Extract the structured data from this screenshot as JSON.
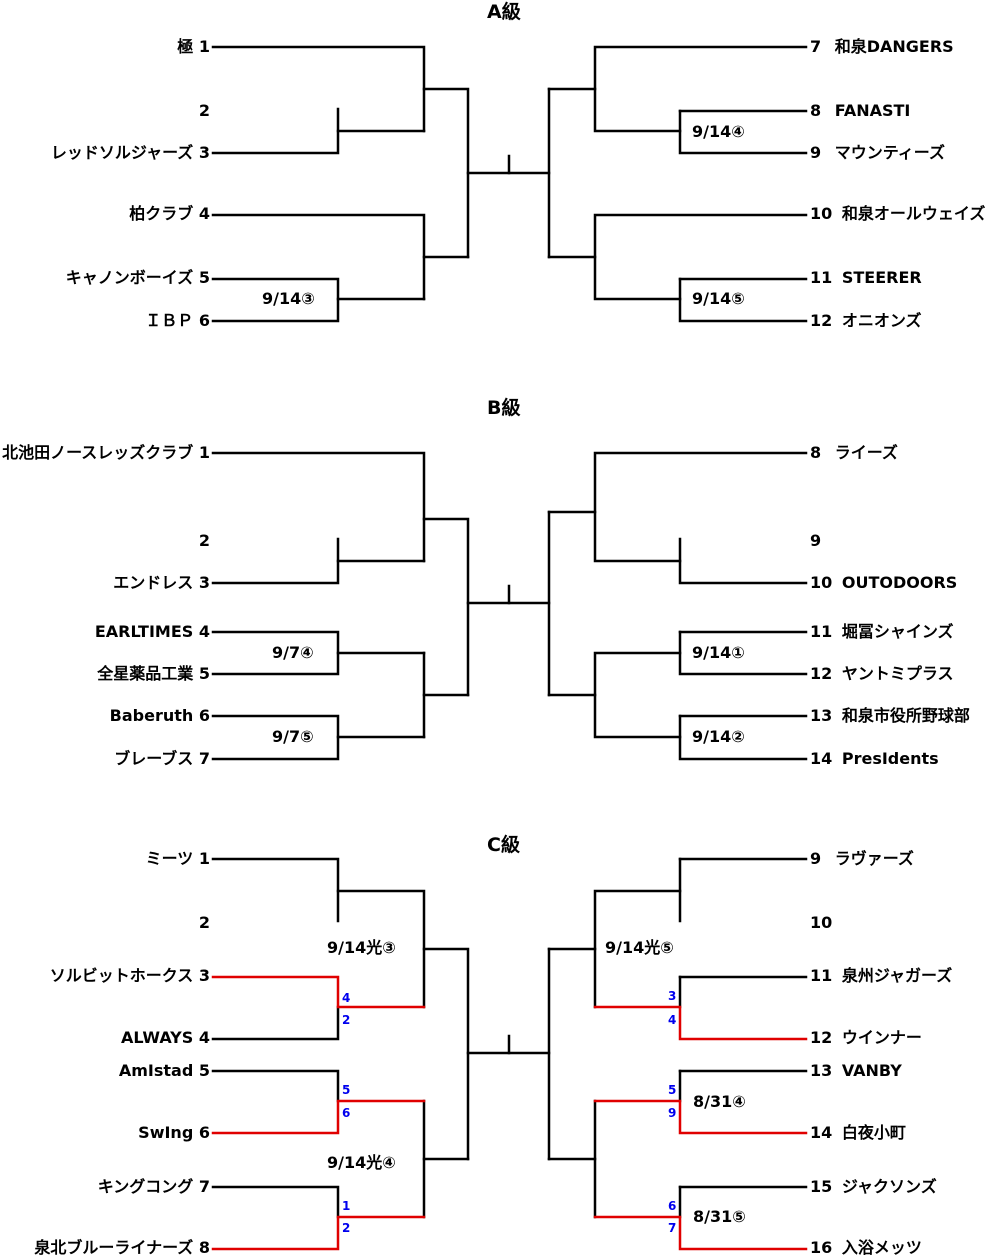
{
  "divisions": {
    "a": {
      "title": "A級",
      "left": [
        {
          "seed": "1",
          "name": "極"
        },
        {
          "seed": "2",
          "name": ""
        },
        {
          "seed": "3",
          "name": "レッドソルジャーズ"
        },
        {
          "seed": "4",
          "name": "柏クラブ"
        },
        {
          "seed": "5",
          "name": "キャノンボーイズ"
        },
        {
          "seed": "6",
          "name": "ＩＢＰ"
        }
      ],
      "right": [
        {
          "seed": "7",
          "name": "和泉DANGERS"
        },
        {
          "seed": "8",
          "name": "FANASTI"
        },
        {
          "seed": "9",
          "name": "マウンティーズ"
        },
        {
          "seed": "10",
          "name": "和泉オールウェイズ"
        },
        {
          "seed": "11",
          "name": "STEERER"
        },
        {
          "seed": "12",
          "name": "オニオンズ"
        }
      ],
      "matches": [
        "9/14③",
        "9/14④",
        "9/14⑤"
      ]
    },
    "b": {
      "title": "B級",
      "left": [
        {
          "seed": "1",
          "name": "北池田ノースレッズクラブ"
        },
        {
          "seed": "2",
          "name": ""
        },
        {
          "seed": "3",
          "name": "エンドレス"
        },
        {
          "seed": "4",
          "name": "EARLTIMES"
        },
        {
          "seed": "5",
          "name": "全星薬品工業"
        },
        {
          "seed": "6",
          "name": "Baberuth"
        },
        {
          "seed": "7",
          "name": "ブレーブス"
        }
      ],
      "right": [
        {
          "seed": "8",
          "name": "ライーズ"
        },
        {
          "seed": "9",
          "name": ""
        },
        {
          "seed": "10",
          "name": "OUTODOORS"
        },
        {
          "seed": "11",
          "name": "堀冨シャインズ"
        },
        {
          "seed": "12",
          "name": "ヤントミプラス"
        },
        {
          "seed": "13",
          "name": "和泉市役所野球部"
        },
        {
          "seed": "14",
          "name": "PresIdents"
        }
      ],
      "matches": [
        "9/7④",
        "9/7⑤",
        "9/14①",
        "9/14②"
      ]
    },
    "c": {
      "title": "C級",
      "left": [
        {
          "seed": "1",
          "name": "ミーツ"
        },
        {
          "seed": "2",
          "name": ""
        },
        {
          "seed": "3",
          "name": "ソルビットホークス"
        },
        {
          "seed": "4",
          "name": "ALWAYS"
        },
        {
          "seed": "5",
          "name": "AmIstad"
        },
        {
          "seed": "6",
          "name": "SwIng"
        },
        {
          "seed": "7",
          "name": "キングコング"
        },
        {
          "seed": "8",
          "name": "泉北ブルーライナーズ"
        }
      ],
      "right": [
        {
          "seed": "9",
          "name": "ラヴァーズ"
        },
        {
          "seed": "10",
          "name": ""
        },
        {
          "seed": "11",
          "name": "泉州ジャガーズ"
        },
        {
          "seed": "12",
          "name": "ウインナー"
        },
        {
          "seed": "13",
          "name": "VANBY"
        },
        {
          "seed": "14",
          "name": "白夜小町"
        },
        {
          "seed": "15",
          "name": "ジャクソンズ"
        },
        {
          "seed": "16",
          "name": "入浴メッツ"
        }
      ],
      "matches": [
        "9/14光③",
        "9/14光④",
        "9/14光⑤",
        "8/31④",
        "8/31⑤"
      ],
      "scores": [
        "4",
        "2",
        "5",
        "6",
        "1",
        "2",
        "3",
        "4",
        "5",
        "9",
        "6",
        "7"
      ]
    }
  },
  "colors": {
    "line": "#000000",
    "winner_line": "#e00000",
    "score": "#0000ee"
  }
}
